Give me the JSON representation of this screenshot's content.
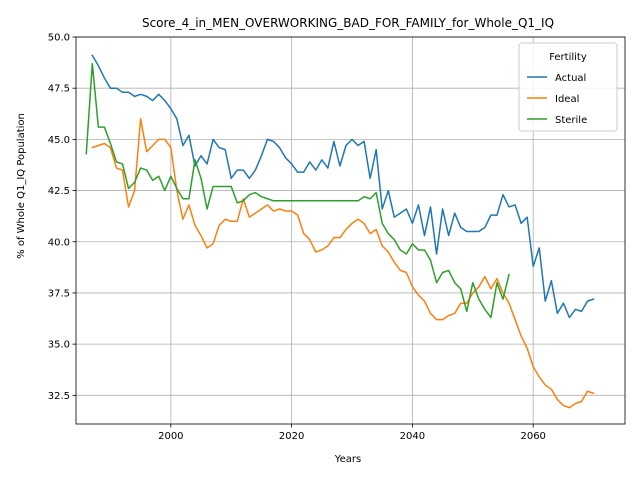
{
  "chart_data": {
    "type": "line",
    "title": "Score_4_in_MEN_OVERWORKING_BAD_FOR_FAMILY_for_Whole_Q1_IQ",
    "xlabel": "Years",
    "ylabel": "% of Whole Q1_IQ Population",
    "xlim": [
      1984.3,
      2075.2
    ],
    "ylim": [
      31.1,
      50.0
    ],
    "xticks": [
      2000,
      2020,
      2040,
      2060
    ],
    "yticks": [
      32.5,
      35.0,
      37.5,
      40.0,
      42.5,
      45.0,
      47.5,
      50.0
    ],
    "ytick_labels": [
      "32.5",
      "35.0",
      "37.5",
      "40.0",
      "42.5",
      "45.0",
      "47.5",
      "50.0"
    ],
    "grid": true,
    "legend": {
      "title": "Fertility",
      "position": "top-right"
    },
    "series": [
      {
        "name": "Actual",
        "color": "#1f77b4",
        "x": [
          1987,
          1988,
          1989,
          1990,
          1991,
          1992,
          1993,
          1994,
          1995,
          1996,
          1997,
          1998,
          1999,
          2000,
          2001,
          2002,
          2003,
          2004,
          2005,
          2006,
          2007,
          2008,
          2009,
          2010,
          2011,
          2012,
          2013,
          2014,
          2015,
          2016,
          2017,
          2018,
          2019,
          2020,
          2021,
          2022,
          2023,
          2024,
          2025,
          2026,
          2027,
          2028,
          2029,
          2030,
          2031,
          2032,
          2033,
          2034,
          2035,
          2036,
          2037,
          2038,
          2039,
          2040,
          2041,
          2042,
          2043,
          2044,
          2045,
          2046,
          2047,
          2048,
          2049,
          2050,
          2051,
          2052,
          2053,
          2054,
          2055,
          2056,
          2057,
          2058,
          2059,
          2060,
          2061,
          2062,
          2063,
          2064,
          2065,
          2066,
          2067,
          2068,
          2069,
          2070
        ],
        "values": [
          49.1,
          48.6,
          48.0,
          47.5,
          47.5,
          47.3,
          47.3,
          47.1,
          47.2,
          47.1,
          46.9,
          47.2,
          46.9,
          46.5,
          46.0,
          44.7,
          45.2,
          43.7,
          44.2,
          43.8,
          45.0,
          44.6,
          44.5,
          43.1,
          43.5,
          43.5,
          43.1,
          43.5,
          44.2,
          45.0,
          44.9,
          44.6,
          44.1,
          43.8,
          43.4,
          43.4,
          43.9,
          43.5,
          44.0,
          43.6,
          44.9,
          43.7,
          44.7,
          45.0,
          44.7,
          44.9,
          43.1,
          44.5,
          41.6,
          42.5,
          41.2,
          41.4,
          41.6,
          40.9,
          41.8,
          40.3,
          41.7,
          39.4,
          41.6,
          40.3,
          41.4,
          40.7,
          40.5,
          40.5,
          40.5,
          40.7,
          41.3,
          41.3,
          42.3,
          41.7,
          41.8,
          40.9,
          41.2,
          38.8,
          39.7,
          37.1,
          38.1,
          36.5,
          37.0,
          36.3,
          36.7,
          36.6,
          37.1,
          37.2
        ]
      },
      {
        "name": "Ideal",
        "color": "#ff7f0e",
        "x": [
          1987,
          1988,
          1989,
          1990,
          1991,
          1992,
          1993,
          1994,
          1995,
          1996,
          1997,
          1998,
          1999,
          2000,
          2001,
          2002,
          2003,
          2004,
          2005,
          2006,
          2007,
          2008,
          2009,
          2010,
          2011,
          2012,
          2013,
          2014,
          2015,
          2016,
          2017,
          2018,
          2019,
          2020,
          2021,
          2022,
          2023,
          2024,
          2025,
          2026,
          2027,
          2028,
          2029,
          2030,
          2031,
          2032,
          2033,
          2034,
          2035,
          2036,
          2037,
          2038,
          2039,
          2040,
          2041,
          2042,
          2043,
          2044,
          2045,
          2046,
          2047,
          2048,
          2049,
          2050,
          2051,
          2052,
          2053,
          2054,
          2055,
          2056,
          2057,
          2058,
          2059,
          2060,
          2061,
          2062,
          2063,
          2064,
          2065,
          2066,
          2067,
          2068,
          2069,
          2070
        ],
        "values": [
          44.6,
          44.7,
          44.8,
          44.6,
          43.6,
          43.5,
          41.7,
          42.5,
          46.0,
          44.4,
          44.7,
          45.0,
          45.0,
          44.6,
          42.5,
          41.1,
          41.8,
          40.8,
          40.3,
          39.7,
          39.9,
          40.8,
          41.1,
          41.0,
          41.0,
          42.1,
          41.2,
          41.4,
          41.6,
          41.8,
          41.5,
          41.6,
          41.5,
          41.5,
          41.3,
          40.4,
          40.1,
          39.5,
          39.6,
          39.8,
          40.2,
          40.2,
          40.6,
          40.9,
          41.1,
          40.9,
          40.4,
          40.6,
          39.8,
          39.5,
          39.0,
          38.6,
          38.5,
          37.8,
          37.4,
          37.1,
          36.5,
          36.2,
          36.2,
          36.4,
          36.5,
          37.0,
          37.0,
          37.5,
          37.8,
          38.3,
          37.7,
          38.2,
          37.5,
          37.0,
          36.2,
          35.4,
          34.8,
          33.9,
          33.4,
          33.0,
          32.8,
          32.3,
          32.0,
          31.9,
          32.1,
          32.2,
          32.7,
          32.6
        ]
      },
      {
        "name": "Sterile",
        "color": "#2ca02c",
        "x": [
          1986,
          1987,
          1988,
          1989,
          1990,
          1991,
          1992,
          1993,
          1994,
          1995,
          1996,
          1997,
          1998,
          1999,
          2000,
          2001,
          2002,
          2003,
          2004,
          2005,
          2006,
          2007,
          2008,
          2009,
          2010,
          2011,
          2012,
          2013,
          2014,
          2015,
          2016,
          2017,
          2018,
          2019,
          2020,
          2021,
          2022,
          2023,
          2024,
          2025,
          2026,
          2027,
          2028,
          2029,
          2030,
          2031,
          2032,
          2033,
          2034,
          2035,
          2036,
          2037,
          2038,
          2039,
          2040,
          2041,
          2042,
          2043,
          2044,
          2045,
          2046,
          2047,
          2048,
          2049,
          2050,
          2051,
          2052,
          2053,
          2054,
          2055,
          2056
        ],
        "values": [
          44.3,
          48.7,
          45.6,
          45.6,
          44.8,
          43.9,
          43.8,
          42.6,
          42.9,
          43.6,
          43.5,
          43.0,
          43.2,
          42.5,
          43.2,
          42.6,
          42.1,
          42.1,
          44.0,
          43.1,
          41.6,
          42.7,
          42.7,
          42.7,
          42.7,
          41.9,
          42.0,
          42.3,
          42.4,
          42.2,
          42.1,
          42.0,
          42.0,
          42.0,
          42.0,
          42.0,
          42.0,
          42.0,
          42.0,
          42.0,
          42.0,
          42.0,
          42.0,
          42.0,
          42.0,
          42.0,
          42.2,
          42.1,
          42.4,
          40.9,
          40.4,
          40.1,
          39.6,
          39.4,
          39.9,
          39.6,
          39.6,
          39.1,
          38.0,
          38.5,
          38.6,
          38.0,
          37.7,
          36.6,
          38.0,
          37.2,
          36.7,
          36.3,
          38.0,
          37.2,
          38.4
        ]
      }
    ]
  }
}
